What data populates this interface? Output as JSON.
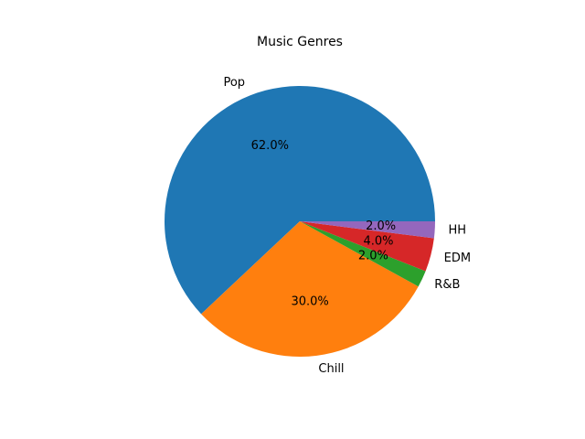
{
  "chart_data": {
    "type": "pie",
    "title": "Music Genres",
    "categories": [
      "Pop",
      "Chill",
      "R&B",
      "EDM",
      "HH"
    ],
    "values": [
      62.0,
      30.0,
      2.0,
      4.0,
      2.0
    ],
    "value_labels": [
      "62.0%",
      "30.0%",
      "2.0%",
      "4.0%",
      "2.0%"
    ],
    "colors": [
      "#1f77b4",
      "#ff7f0e",
      "#2ca02c",
      "#d62728",
      "#9467bd"
    ],
    "start_angle_deg": 0,
    "direction": "counterclockwise",
    "legend": "none"
  }
}
